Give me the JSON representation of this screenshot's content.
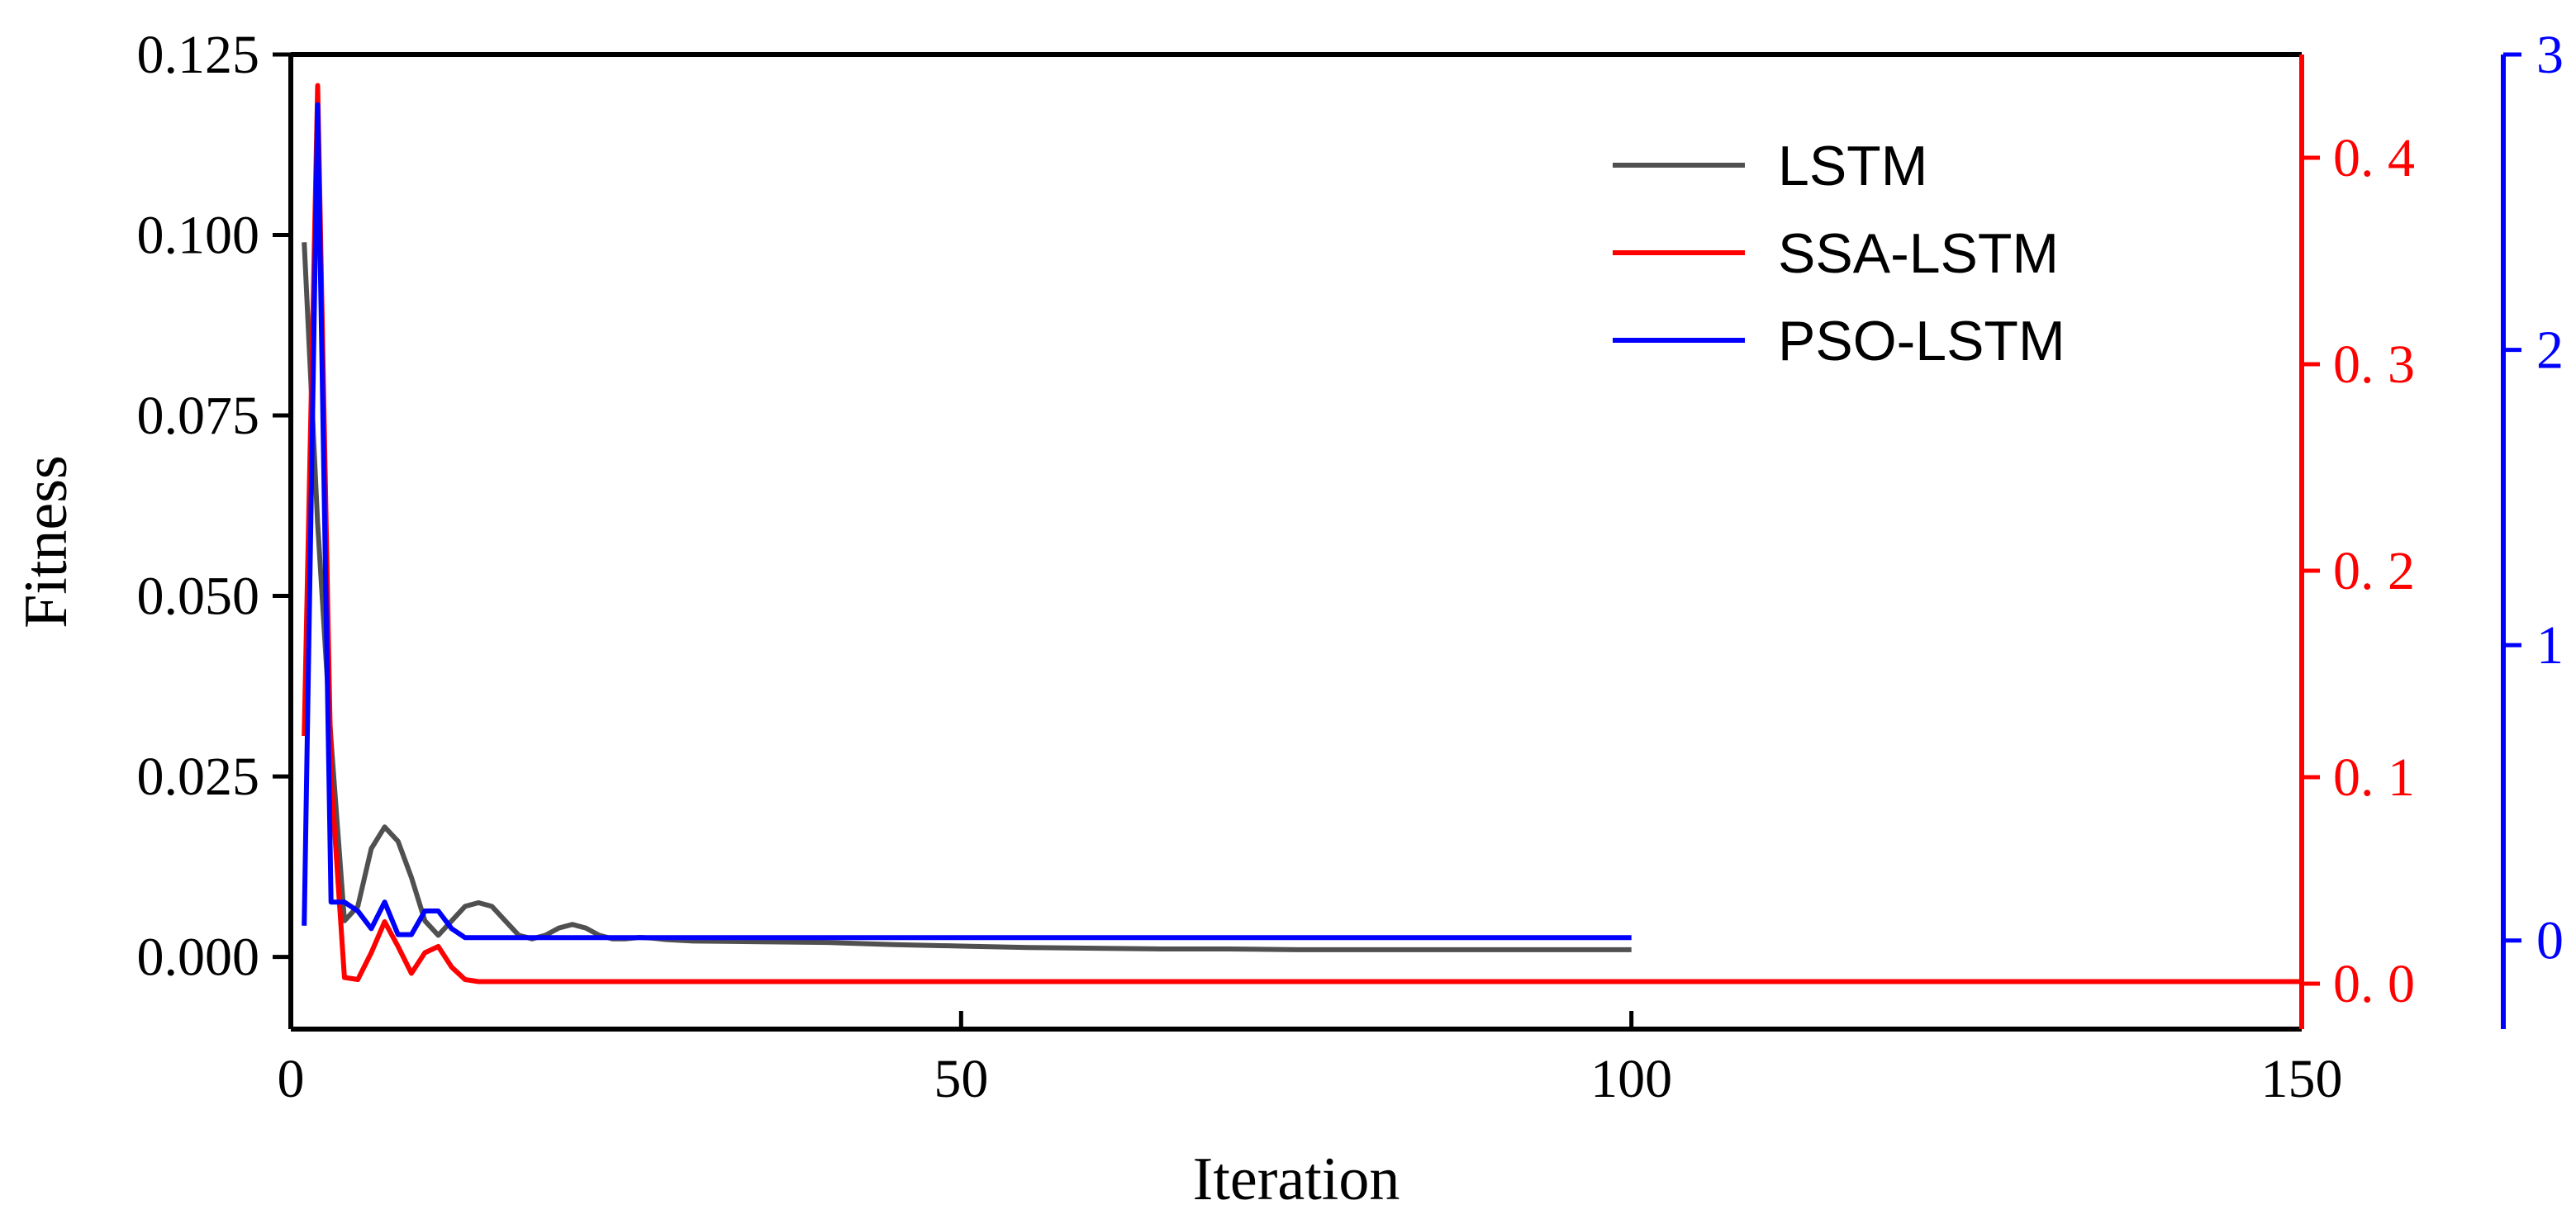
{
  "chart_data": {
    "type": "line",
    "title": "",
    "xlabel": "Iteration",
    "ylabel": "Fitness",
    "xlim": [
      0,
      150
    ],
    "xticks": [
      0,
      50,
      100,
      150
    ],
    "x_tick_labels": [
      "0",
      "50",
      "100",
      "150"
    ],
    "axes": {
      "left": {
        "color": "#000000",
        "ylim": [
          -0.01,
          0.125
        ],
        "ticks": [
          0,
          0.025,
          0.05,
          0.075,
          0.1,
          0.125
        ],
        "tick_labels": [
          "0.000",
          "0.025",
          "0.050",
          "0.075",
          "0.100",
          "0.125"
        ]
      },
      "right": {
        "color": "#ff0000",
        "ylim": [
          -0.022,
          0.45
        ],
        "ticks": [
          0,
          0.1,
          0.2,
          0.3,
          0.4
        ],
        "tick_labels": [
          "0. 0",
          "0. 1",
          "0. 2",
          "0. 3",
          "0. 4"
        ]
      },
      "right2": {
        "color": "#0000ff",
        "ylim": [
          -0.3,
          3.0
        ],
        "ticks": [
          0,
          1,
          2,
          3
        ],
        "tick_labels": [
          "0",
          "1",
          "2",
          "3"
        ]
      }
    },
    "grid": false,
    "legend": {
      "position": "top-right"
    },
    "series": [
      {
        "name": "LSTM",
        "color": "#505050",
        "axis": "left",
        "x": [
          1,
          2,
          3,
          4,
          5,
          6,
          7,
          8,
          9,
          10,
          11,
          12,
          13,
          14,
          15,
          16,
          17,
          18,
          19,
          20,
          21,
          22,
          23,
          24,
          25,
          26,
          27,
          28,
          29,
          30,
          35,
          40,
          45,
          50,
          55,
          60,
          65,
          70,
          75,
          80,
          85,
          90,
          95,
          100
        ],
        "y": [
          0.099,
          0.06,
          0.03,
          0.005,
          0.007,
          0.015,
          0.018,
          0.016,
          0.011,
          0.005,
          0.003,
          0.005,
          0.007,
          0.0075,
          0.007,
          0.005,
          0.003,
          0.0025,
          0.003,
          0.004,
          0.0045,
          0.004,
          0.003,
          0.0025,
          0.0025,
          0.0027,
          0.0026,
          0.0024,
          0.0023,
          0.0022,
          0.0021,
          0.002,
          0.0017,
          0.0015,
          0.0013,
          0.0012,
          0.0011,
          0.0011,
          0.001,
          0.001,
          0.001,
          0.001,
          0.001,
          0.001
        ]
      },
      {
        "name": "SSA-LSTM",
        "color": "#ff0000",
        "axis": "right",
        "x": [
          1,
          2,
          3,
          4,
          5,
          6,
          7,
          8,
          9,
          10,
          11,
          12,
          13,
          14,
          15,
          20,
          25,
          30,
          40,
          50,
          60,
          70,
          80,
          90,
          100,
          110,
          120,
          130,
          140,
          150
        ],
        "y": [
          0.12,
          0.435,
          0.1,
          0.003,
          0.002,
          0.015,
          0.03,
          0.018,
          0.005,
          0.015,
          0.018,
          0.008,
          0.002,
          0.001,
          0.001,
          0.001,
          0.001,
          0.001,
          0.001,
          0.001,
          0.001,
          0.001,
          0.001,
          0.001,
          0.001,
          0.001,
          0.001,
          0.001,
          0.001,
          0.001
        ]
      },
      {
        "name": "PSO-LSTM",
        "color": "#0000ff",
        "axis": "right2",
        "x": [
          1,
          2,
          3,
          4,
          5,
          6,
          7,
          8,
          9,
          10,
          11,
          12,
          13,
          14,
          15,
          20,
          30,
          40,
          50,
          60,
          70,
          80,
          90,
          100
        ],
        "y": [
          0.05,
          2.83,
          0.13,
          0.13,
          0.1,
          0.04,
          0.13,
          0.02,
          0.02,
          0.1,
          0.1,
          0.04,
          0.01,
          0.01,
          0.01,
          0.01,
          0.01,
          0.01,
          0.01,
          0.01,
          0.01,
          0.01,
          0.01,
          0.01
        ]
      }
    ]
  }
}
